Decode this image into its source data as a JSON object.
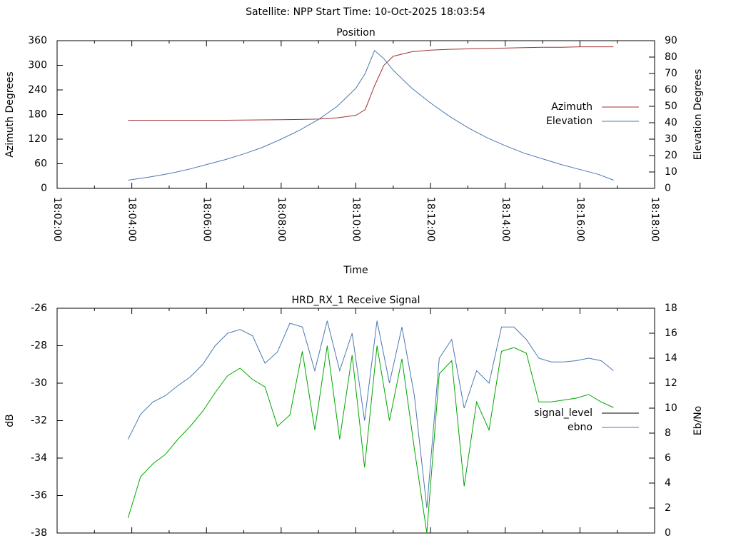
{
  "title": "Satellite: NPP    Start Time: 10-Oct-2025 18:03:54",
  "chart_data": [
    {
      "type": "line",
      "title": "Position",
      "xlabel": "Time",
      "ylabel": "Azimuth Degrees",
      "y2label": "Elevation Degrees",
      "xlim": [
        "18:02:00",
        "18:18:00"
      ],
      "xticks": [
        "18:02:00",
        "18:04:00",
        "18:06:00",
        "18:08:00",
        "18:10:00",
        "18:12:00",
        "18:14:00",
        "18:16:00",
        "18:18:00"
      ],
      "ylim": [
        0,
        360
      ],
      "yticks": [
        0,
        60,
        120,
        180,
        240,
        300,
        360
      ],
      "y2lim": [
        0,
        90
      ],
      "y2ticks": [
        0,
        10,
        20,
        30,
        40,
        50,
        60,
        70,
        80,
        90
      ],
      "x": [
        "18:03:54",
        "18:04:30",
        "18:05:00",
        "18:05:30",
        "18:06:00",
        "18:06:30",
        "18:07:00",
        "18:07:30",
        "18:08:00",
        "18:08:30",
        "18:09:00",
        "18:09:30",
        "18:10:00",
        "18:10:15",
        "18:10:30",
        "18:10:45",
        "18:11:00",
        "18:11:30",
        "18:12:00",
        "18:12:30",
        "18:13:00",
        "18:13:30",
        "18:14:00",
        "18:14:30",
        "18:15:00",
        "18:15:30",
        "18:16:00",
        "18:16:30",
        "18:16:54"
      ],
      "series": [
        {
          "name": "Azimuth",
          "color": "#a03030",
          "values": [
            166,
            166,
            166,
            166,
            166,
            166,
            166.5,
            167,
            167.5,
            168,
            169,
            172,
            178,
            192,
            250,
            300,
            322,
            333,
            337,
            339,
            340,
            341,
            342,
            343,
            344,
            344,
            345,
            345,
            345
          ]
        },
        {
          "name": "Elevation",
          "color": "#4a78b0",
          "axis": "y2",
          "values": [
            5,
            7,
            9,
            11.5,
            14.5,
            17.5,
            21,
            25,
            30,
            35.5,
            42,
            50,
            61,
            70,
            84,
            79,
            72,
            61,
            52,
            44,
            37,
            31,
            26,
            21.5,
            18,
            14.5,
            11.5,
            8.5,
            5
          ]
        }
      ]
    },
    {
      "type": "line",
      "title": "HRD_RX_1 Receive Signal",
      "ylabel": "dB",
      "y2label": "Eb/No",
      "xlim": [
        "18:02:00",
        "18:18:00"
      ],
      "ylim": [
        -38,
        -26
      ],
      "yticks": [
        -38,
        -36,
        -34,
        -32,
        -30,
        -28,
        -26
      ],
      "y2lim": [
        0,
        18
      ],
      "y2ticks": [
        0,
        2,
        4,
        6,
        8,
        10,
        12,
        14,
        16,
        18
      ],
      "x": [
        "18:03:54",
        "18:04:14",
        "18:04:34",
        "18:04:54",
        "18:05:14",
        "18:05:34",
        "18:05:54",
        "18:06:14",
        "18:06:34",
        "18:06:54",
        "18:07:14",
        "18:07:34",
        "18:07:54",
        "18:08:14",
        "18:08:34",
        "18:08:54",
        "18:09:14",
        "18:09:34",
        "18:09:54",
        "18:10:14",
        "18:10:34",
        "18:10:54",
        "18:11:14",
        "18:11:34",
        "18:11:54",
        "18:12:14",
        "18:12:34",
        "18:12:54",
        "18:13:14",
        "18:13:34",
        "18:13:54",
        "18:14:14",
        "18:14:34",
        "18:14:54",
        "18:15:14",
        "18:15:34",
        "18:15:54",
        "18:16:14",
        "18:16:34",
        "18:16:54"
      ],
      "series": [
        {
          "name": "signal_level",
          "color": "#00a800",
          "legend_color": "#000000",
          "values": [
            -37.2,
            -35,
            -34.3,
            -33.8,
            -33,
            -32.3,
            -31.5,
            -30.5,
            -29.6,
            -29.2,
            -29.8,
            -30.2,
            -32.3,
            -31.7,
            -28.3,
            -32.5,
            -28,
            -33,
            -28.5,
            -34.5,
            -28,
            -32,
            -28.7,
            -33.5,
            -38,
            -29.5,
            -28.8,
            -35.5,
            -31,
            -32.5,
            -28.3,
            -28.1,
            -28.4,
            -31,
            -31,
            -30.9,
            -30.8,
            -30.6,
            -31,
            -31.3
          ]
        },
        {
          "name": "ebno",
          "color": "#4a78b0",
          "axis": "y2",
          "values": [
            7.5,
            9.5,
            10.5,
            11,
            11.8,
            12.5,
            13.5,
            15,
            16,
            16.3,
            15.8,
            13.6,
            14.5,
            16.8,
            16.5,
            13,
            17,
            13,
            16,
            9,
            17,
            12,
            16.5,
            11,
            2,
            14,
            15.5,
            10,
            13,
            12,
            16.5,
            16.5,
            15.5,
            14,
            13.7,
            13.7,
            13.8,
            14,
            13.8,
            13
          ]
        }
      ]
    }
  ]
}
